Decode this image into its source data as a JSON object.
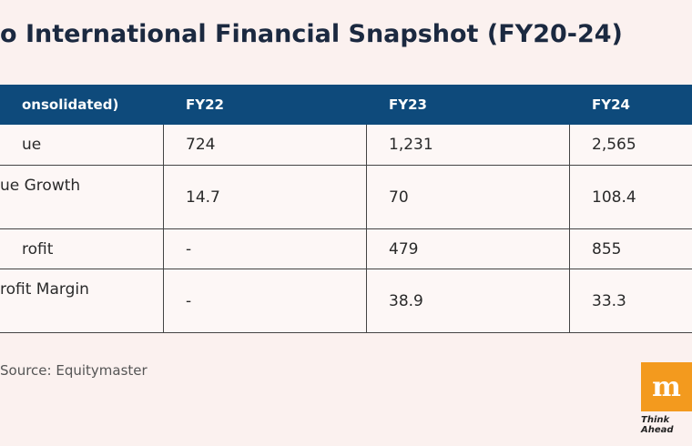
{
  "header": {
    "title": "o International Financial Snapshot (FY20-24)"
  },
  "table": {
    "columns": [
      "onsolidated)",
      "FY22",
      "FY23",
      "FY24"
    ],
    "rows": [
      [
        "ue",
        "724",
        "1,231",
        "2,565"
      ],
      [
        "ue Growth",
        "14.7",
        "70",
        "108.4"
      ],
      [
        "rofit",
        "-",
        "479",
        "855"
      ],
      [
        "rofit Margin",
        "-",
        "38.9",
        "33.3"
      ]
    ]
  },
  "footer": {
    "source": "Source: Equitymaster",
    "logo": "m",
    "tagline": "Think Ahead"
  }
}
